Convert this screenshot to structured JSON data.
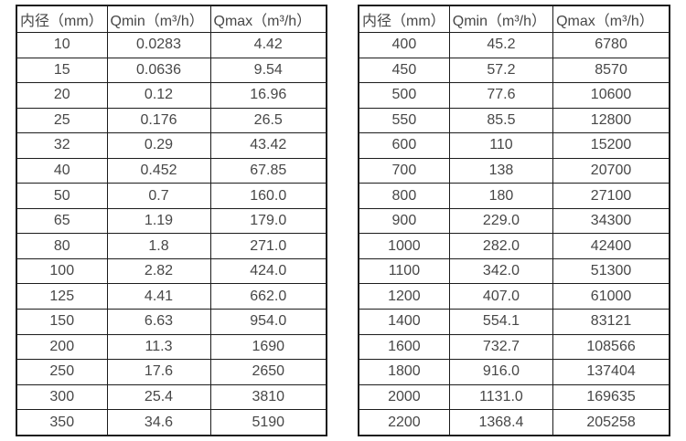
{
  "page": {
    "background_color": "#ffffff",
    "text_color": "#474747",
    "border_color": "#1c1c1c"
  },
  "tables": [
    {
      "name": "flow-spec-small-diameters",
      "headers": [
        "内径（mm）",
        "Qmin（m³/h）",
        "Qmax（m³/h）"
      ],
      "rows": [
        [
          "10",
          "0.0283",
          "4.42"
        ],
        [
          "15",
          "0.0636",
          "9.54"
        ],
        [
          "20",
          "0.12",
          "16.96"
        ],
        [
          "25",
          "0.176",
          "26.5"
        ],
        [
          "32",
          "0.29",
          "43.42"
        ],
        [
          "40",
          "0.452",
          "67.85"
        ],
        [
          "50",
          "0.7",
          "160.0"
        ],
        [
          "65",
          "1.19",
          "179.0"
        ],
        [
          "80",
          "1.8",
          "271.0"
        ],
        [
          "100",
          "2.82",
          "424.0"
        ],
        [
          "125",
          "4.41",
          "662.0"
        ],
        [
          "150",
          "6.63",
          "954.0"
        ],
        [
          "200",
          "11.3",
          "1690"
        ],
        [
          "250",
          "17.6",
          "2650"
        ],
        [
          "300",
          "25.4",
          "3810"
        ],
        [
          "350",
          "34.6",
          "5190"
        ]
      ]
    },
    {
      "name": "flow-spec-large-diameters",
      "headers": [
        "内径（mm）",
        "Qmin（m³/h）",
        "Qmax（m³/h）"
      ],
      "rows": [
        [
          "400",
          "45.2",
          "6780"
        ],
        [
          "450",
          "57.2",
          "8570"
        ],
        [
          "500",
          "77.6",
          "10600"
        ],
        [
          "550",
          "85.5",
          "12800"
        ],
        [
          "600",
          "110",
          "15200"
        ],
        [
          "700",
          "138",
          "20700"
        ],
        [
          "800",
          "180",
          "27100"
        ],
        [
          "900",
          "229.0",
          "34300"
        ],
        [
          "1000",
          "282.0",
          "42400"
        ],
        [
          "1100",
          "342.0",
          "51300"
        ],
        [
          "1200",
          "407.0",
          "61000"
        ],
        [
          "1400",
          "554.1",
          "83121"
        ],
        [
          "1600",
          "732.7",
          "108566"
        ],
        [
          "1800",
          "916.0",
          "137404"
        ],
        [
          "2000",
          "1131.0",
          "169635"
        ],
        [
          "2200",
          "1368.4",
          "205258"
        ]
      ]
    }
  ]
}
